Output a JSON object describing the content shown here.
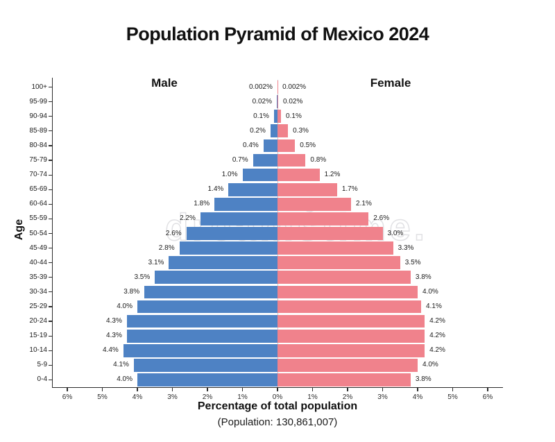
{
  "title": "Population Pyramid of Mexico 2024",
  "colors": {
    "male_bar": "#4e82c4",
    "female_bar": "#f0828c",
    "axis": "#2b2b2b",
    "centerline": "#c9c9cf"
  },
  "watermark": {
    "text": "dreamstime.",
    "symbol": "©"
  },
  "chart_data": {
    "type": "bar",
    "variant": "population-pyramid",
    "title": "Population Pyramid of Mexico 2024",
    "ylabel": "Age",
    "xlabel": "Percentage of total population",
    "xlabel_sub": "(Population: 130,861,007)",
    "legend_left": "Male",
    "legend_right": "Female",
    "x_axis_range_pct": [
      0,
      6
    ],
    "x_ticks": [
      "6%",
      "5%",
      "4%",
      "3%",
      "2%",
      "1%",
      "0%",
      "1%",
      "2%",
      "3%",
      "4%",
      "5%",
      "6%"
    ],
    "categories": [
      "100+",
      "95-99",
      "90-94",
      "85-89",
      "80-84",
      "75-79",
      "70-74",
      "65-69",
      "60-64",
      "55-59",
      "50-54",
      "45-49",
      "40-44",
      "35-39",
      "30-34",
      "25-29",
      "20-24",
      "15-19",
      "10-14",
      "5-9",
      "0-4"
    ],
    "series": [
      {
        "name": "Male",
        "color": "#4e82c4",
        "values": [
          0.002,
          0.02,
          0.1,
          0.2,
          0.4,
          0.7,
          1.0,
          1.4,
          1.8,
          2.2,
          2.6,
          2.8,
          3.1,
          3.5,
          3.8,
          4.0,
          4.3,
          4.3,
          4.4,
          4.1,
          4.0
        ],
        "labels": [
          "0.002%",
          "0.02%",
          "0.1%",
          "0.2%",
          "0.4%",
          "0.7%",
          "1.0%",
          "1.4%",
          "1.8%",
          "2.2%",
          "2.6%",
          "2.8%",
          "3.1%",
          "3.5%",
          "3.8%",
          "4.0%",
          "4.3%",
          "4.3%",
          "4.4%",
          "4.1%",
          "4.0%"
        ]
      },
      {
        "name": "Female",
        "color": "#f0828c",
        "values": [
          0.002,
          0.02,
          0.1,
          0.3,
          0.5,
          0.8,
          1.2,
          1.7,
          2.1,
          2.6,
          3.0,
          3.3,
          3.5,
          3.8,
          4.0,
          4.1,
          4.2,
          4.2,
          4.2,
          4.0,
          3.8
        ],
        "labels": [
          "0.002%",
          "0.02%",
          "0.1%",
          "0.3%",
          "0.5%",
          "0.8%",
          "1.2%",
          "1.7%",
          "2.1%",
          "2.6%",
          "3.0%",
          "3.3%",
          "3.5%",
          "3.8%",
          "4.0%",
          "4.1%",
          "4.2%",
          "4.2%",
          "4.2%",
          "4.0%",
          "3.8%"
        ]
      }
    ]
  }
}
